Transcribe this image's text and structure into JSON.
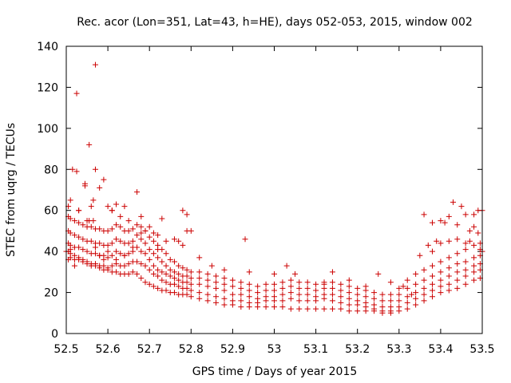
{
  "chart_data": {
    "type": "scatter",
    "title": "Rec. acor (Lon=351, Lat=43, h=HE), days 052-053, 2015, window 002",
    "xlabel": "GPS time / Days of year 2015",
    "ylabel": "STEC from uqrg / TECUs",
    "xlim": [
      52.5,
      53.5
    ],
    "ylim": [
      0,
      140
    ],
    "x_ticks": [
      52.5,
      52.6,
      52.7,
      52.8,
      52.9,
      53.0,
      53.1,
      53.2,
      53.3,
      53.4,
      53.5
    ],
    "x_tick_labels": [
      "52.5",
      "52.6",
      "52.7",
      "52.8",
      "52.9",
      "53",
      "53.1",
      "53.2",
      "53.3",
      "53.4",
      "53.5"
    ],
    "y_ticks": [
      0,
      20,
      40,
      60,
      80,
      100,
      120,
      140
    ],
    "y_tick_labels": [
      "0",
      "20",
      "40",
      "60",
      "80",
      "100",
      "120",
      "140"
    ],
    "marker": "+",
    "color": "#cc0000",
    "series": [
      {
        "name": "STEC",
        "x": [
          52.505,
          52.51,
          52.52,
          52.53,
          52.54,
          52.55,
          52.56,
          52.57,
          52.58,
          52.59,
          52.6,
          52.61,
          52.62,
          52.63,
          52.64,
          52.65,
          52.66,
          52.67,
          52.68,
          52.69,
          52.7,
          52.71,
          52.72,
          52.73,
          52.74,
          52.75,
          52.76,
          52.77,
          52.78,
          52.79,
          52.8,
          52.82,
          52.84,
          52.86,
          52.88,
          52.9,
          52.92,
          52.94,
          52.96,
          52.98,
          53.0,
          53.02,
          53.04,
          53.06,
          53.08,
          53.1,
          53.12,
          53.14,
          53.16,
          53.18,
          53.2,
          53.22,
          53.24,
          53.26,
          53.28,
          53.3,
          53.32,
          53.34,
          53.36,
          53.38,
          53.4,
          53.42,
          53.44,
          53.46,
          53.48,
          53.495,
          52.505,
          52.51,
          52.52,
          52.53,
          52.54,
          52.55,
          52.56,
          52.57,
          52.58,
          52.59,
          52.6,
          52.61,
          52.62,
          52.63,
          52.64,
          52.65,
          52.66,
          52.67,
          52.68,
          52.69,
          52.7,
          52.71,
          52.72,
          52.73,
          52.74,
          52.75,
          52.76,
          52.77,
          52.78,
          52.79,
          52.8,
          52.82,
          52.84,
          52.86,
          52.88,
          52.9,
          52.92,
          52.94,
          52.96,
          52.98,
          53.0,
          53.02,
          53.04,
          53.06,
          53.08,
          53.1,
          53.12,
          53.14,
          53.16,
          53.18,
          53.2,
          53.22,
          53.24,
          53.26,
          53.28,
          53.3,
          53.32,
          53.34,
          53.36,
          53.38,
          53.4,
          53.42,
          53.44,
          53.46,
          53.48,
          53.495,
          52.505,
          52.51,
          52.52,
          52.53,
          52.54,
          52.55,
          52.56,
          52.57,
          52.58,
          52.59,
          52.6,
          52.61,
          52.62,
          52.63,
          52.64,
          52.65,
          52.66,
          52.67,
          52.68,
          52.69,
          52.7,
          52.71,
          52.72,
          52.73,
          52.74,
          52.75,
          52.76,
          52.77,
          52.78,
          52.79,
          52.8,
          52.82,
          52.84,
          52.86,
          52.88,
          52.9,
          52.92,
          52.94,
          52.96,
          52.98,
          53.0,
          53.02,
          53.04,
          53.06,
          53.08,
          53.1,
          53.12,
          53.14,
          53.16,
          53.18,
          53.2,
          53.22,
          53.24,
          53.26,
          53.28,
          53.3,
          53.32,
          53.34,
          53.36,
          53.38,
          53.4,
          53.42,
          53.44,
          53.46,
          53.48,
          53.495,
          52.505,
          52.51,
          52.52,
          52.53,
          52.54,
          52.55,
          52.56,
          52.57,
          52.58,
          52.59,
          52.6,
          52.61,
          52.62,
          52.63,
          52.64,
          52.65,
          52.66,
          52.67,
          52.68,
          52.69,
          52.7,
          52.71,
          52.72,
          52.73,
          52.74,
          52.75,
          52.76,
          52.77,
          52.78,
          52.79,
          52.8,
          52.82,
          52.84,
          52.86,
          52.88,
          52.9,
          52.92,
          52.94,
          52.96,
          52.98,
          53.0,
          53.02,
          53.04,
          53.06,
          53.08,
          53.1,
          53.12,
          53.14,
          53.16,
          53.18,
          53.2,
          53.22,
          53.24,
          53.26,
          53.28,
          53.3,
          53.32,
          53.34,
          53.36,
          53.38,
          53.4,
          53.42,
          53.44,
          53.46,
          53.48,
          53.495,
          52.505,
          52.51,
          52.52,
          52.53,
          52.54,
          52.55,
          52.56,
          52.57,
          52.58,
          52.59,
          52.6,
          52.61,
          52.62,
          52.63,
          52.64,
          52.65,
          52.66,
          52.67,
          52.68,
          52.69,
          52.7,
          52.71,
          52.72,
          52.73,
          52.74,
          52.75,
          52.76,
          52.77,
          52.78,
          52.79,
          52.8,
          52.82,
          52.84,
          52.86,
          52.88,
          52.9,
          52.92,
          52.94,
          52.96,
          52.98,
          53.0,
          53.02,
          53.04,
          53.06,
          53.08,
          53.1,
          53.12,
          53.14,
          53.16,
          53.18,
          53.2,
          53.22,
          53.24,
          53.26,
          53.28,
          53.3,
          53.32,
          53.34,
          53.36,
          53.38,
          53.4,
          53.42,
          53.44,
          53.46,
          53.48,
          53.495,
          52.505,
          52.51,
          52.515,
          52.525,
          52.53,
          52.545,
          52.555,
          52.565,
          52.57,
          52.58,
          52.59,
          52.6,
          52.61,
          52.62,
          52.63,
          52.64,
          52.65,
          52.67,
          52.68,
          52.69,
          52.71,
          52.72,
          52.73,
          52.76,
          52.77,
          52.78,
          52.79,
          52.8,
          52.82,
          52.85,
          52.88,
          52.93,
          52.94,
          53.0,
          53.03,
          53.05,
          53.12,
          53.14,
          53.18,
          53.22,
          53.25,
          53.28,
          53.31,
          53.33,
          53.35,
          53.37,
          53.38,
          53.39,
          53.4,
          53.41,
          53.42,
          53.43,
          53.44,
          53.45,
          53.46,
          53.47,
          53.48,
          53.49,
          53.495,
          53.5,
          52.5,
          52.51,
          52.52,
          52.53,
          52.55,
          52.56,
          52.57,
          52.57,
          52.58,
          52.59,
          52.6,
          52.61,
          52.62,
          52.64,
          52.66,
          52.68,
          52.7,
          52.72,
          52.74,
          52.78,
          52.79,
          53.36,
          53.38,
          53.4,
          53.42,
          53.44,
          53.46,
          53.47,
          53.48,
          53.49,
          53.5,
          52.525,
          52.565,
          52.555,
          52.545
        ],
        "y": [
          36,
          37,
          36,
          36,
          35,
          34,
          33,
          33,
          32,
          31,
          31,
          30,
          30,
          29,
          29,
          29,
          30,
          29,
          27,
          25,
          24,
          23,
          22,
          21,
          21,
          20,
          20,
          19,
          19,
          19,
          18,
          17,
          16,
          15,
          14,
          14,
          13,
          13,
          13,
          13,
          13,
          13,
          12,
          12,
          12,
          12,
          12,
          12,
          12,
          11,
          11,
          11,
          11,
          10,
          10,
          11,
          12,
          14,
          16,
          18,
          20,
          21,
          22,
          24,
          26,
          27,
          40,
          39,
          38,
          37,
          36,
          35,
          34,
          34,
          33,
          33,
          32,
          33,
          34,
          33,
          33,
          34,
          35,
          35,
          34,
          33,
          31,
          29,
          28,
          26,
          25,
          24,
          24,
          23,
          22,
          22,
          21,
          20,
          19,
          18,
          17,
          16,
          16,
          15,
          15,
          16,
          16,
          16,
          17,
          16,
          16,
          16,
          17,
          16,
          15,
          14,
          14,
          13,
          12,
          11,
          11,
          13,
          15,
          17,
          19,
          21,
          23,
          24,
          26,
          28,
          30,
          31,
          44,
          43,
          42,
          42,
          41,
          40,
          39,
          39,
          38,
          38,
          37,
          38,
          40,
          39,
          38,
          39,
          40,
          42,
          40,
          39,
          36,
          33,
          31,
          30,
          29,
          28,
          27,
          26,
          25,
          25,
          24,
          24,
          23,
          22,
          21,
          19,
          19,
          18,
          17,
          18,
          18,
          19,
          20,
          19,
          19,
          18,
          19,
          19,
          18,
          17,
          16,
          15,
          14,
          13,
          13,
          16,
          18,
          20,
          22,
          24,
          26,
          28,
          30,
          31,
          33,
          34,
          50,
          49,
          48,
          47,
          46,
          45,
          45,
          44,
          44,
          43,
          43,
          44,
          46,
          45,
          44,
          44,
          45,
          48,
          46,
          44,
          41,
          39,
          37,
          35,
          33,
          31,
          30,
          29,
          28,
          28,
          27,
          27,
          26,
          25,
          24,
          23,
          22,
          21,
          20,
          21,
          21,
          22,
          23,
          22,
          22,
          21,
          22,
          22,
          21,
          20,
          19,
          18,
          17,
          16,
          16,
          19,
          22,
          24,
          26,
          28,
          30,
          32,
          34,
          35,
          37,
          38,
          57,
          56,
          55,
          54,
          53,
          52,
          52,
          51,
          51,
          50,
          50,
          51,
          53,
          52,
          50,
          50,
          51,
          53,
          52,
          50,
          47,
          45,
          43,
          41,
          39,
          36,
          35,
          33,
          32,
          31,
          30,
          30,
          29,
          28,
          27,
          26,
          25,
          24,
          23,
          24,
          24,
          25,
          26,
          25,
          25,
          24,
          25,
          25,
          24,
          23,
          22,
          21,
          20,
          19,
          19,
          22,
          26,
          29,
          31,
          33,
          35,
          37,
          39,
          41,
          43,
          44,
          62,
          65,
          80,
          117,
          60,
          73,
          92,
          65,
          80,
          71,
          75,
          62,
          60,
          63,
          57,
          62,
          55,
          69,
          57,
          50,
          49,
          48,
          56,
          46,
          45,
          60,
          58,
          50,
          37,
          33,
          31,
          46,
          30,
          29,
          33,
          29,
          24,
          30,
          26,
          23,
          29,
          25,
          23,
          19,
          38,
          43,
          54,
          45,
          55,
          54,
          57,
          64,
          46,
          62,
          44,
          50,
          52,
          60,
          41,
          60,
          40,
          41,
          33,
          60,
          55,
          62,
          42,
          131,
          38,
          36,
          40,
          60,
          36,
          38,
          42,
          49,
          52,
          41,
          45,
          43,
          50,
          58,
          40,
          44,
          45,
          53,
          58,
          45,
          58,
          49,
          40,
          79,
          55,
          55,
          72
        ]
      }
    ]
  }
}
